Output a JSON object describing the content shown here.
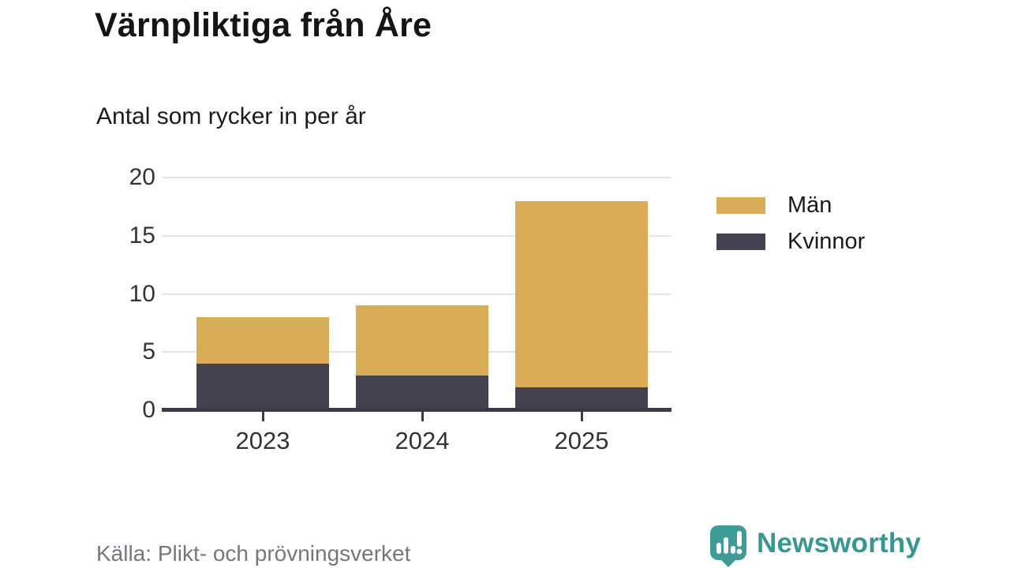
{
  "header": {
    "title": "Värnpliktiga från Åre",
    "subtitle": "Antal som rycker in per år"
  },
  "chart_data": {
    "type": "bar",
    "stacked": true,
    "title": "Värnpliktiga från Åre",
    "subtitle": "Antal som rycker in per år",
    "categories": [
      "2023",
      "2024",
      "2025"
    ],
    "series": [
      {
        "name": "Män",
        "color": "#d9ac57",
        "values": [
          4,
          6,
          16
        ]
      },
      {
        "name": "Kvinnor",
        "color": "#434250",
        "values": [
          4,
          3,
          2
        ]
      }
    ],
    "stack_totals": [
      8,
      9,
      18
    ],
    "xlabel": "",
    "ylabel": "",
    "ylim": [
      0,
      20
    ],
    "yticks": [
      0,
      5,
      10,
      15,
      20
    ],
    "grid": true,
    "legend_position": "right"
  },
  "legend": {
    "items": [
      {
        "label": "Män",
        "color": "#d9ac57"
      },
      {
        "label": "Kvinnor",
        "color": "#434250"
      }
    ]
  },
  "footer": {
    "source": "Källa: Plikt- och prövningsverket",
    "brand": "Newsworthy"
  },
  "colors": {
    "men": "#d9ac57",
    "women": "#434250",
    "axis": "#3b3a49",
    "gridline": "#e4e4e6",
    "brand_teal": "#399691",
    "source_text": "#77767f"
  }
}
